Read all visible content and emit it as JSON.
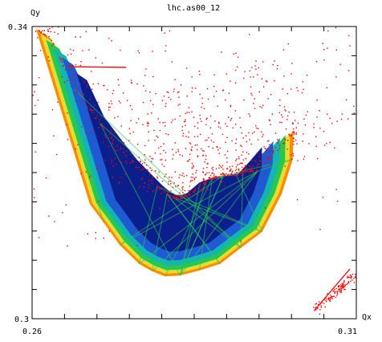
{
  "chart_data": {
    "type": "scatter",
    "title": "lhc.as00_12",
    "xlabel": "Qx",
    "ylabel": "Qy",
    "xlim": [
      0.26,
      0.31
    ],
    "ylim": [
      0.3,
      0.34
    ],
    "x_tick_labels": [
      "0.26",
      "0.31"
    ],
    "y_tick_labels": [
      "0.34",
      "0.3"
    ],
    "x_minor_ticks": [
      0.265,
      0.27,
      0.275,
      0.28,
      0.285,
      0.29,
      0.295,
      0.3,
      0.305
    ],
    "y_minor_ticks": [
      0.304,
      0.308,
      0.312,
      0.316,
      0.32,
      0.324,
      0.328,
      0.332,
      0.336
    ],
    "grid": false,
    "legend": "none",
    "colors": {
      "scatter_red": "#ff0000",
      "core_blue": "#0a1e8c",
      "mid_blue": "#1e5ad2",
      "cyan": "#14b4b4",
      "green": "#28c850",
      "yellow": "#e6dc32",
      "orange": "#ff8c00"
    },
    "series": [
      {
        "role": "footprint-boundary",
        "x": [
          0.2606,
          0.2628,
          0.2665,
          0.2705,
          0.2735,
          0.2765,
          0.2793,
          0.2808,
          0.2818,
          0.2828,
          0.2842,
          0.2858,
          0.2868,
          0.2878,
          0.2895,
          0.2915,
          0.2925,
          0.2948,
          0.2978,
          0.3003,
          0.3002,
          0.2985,
          0.2955,
          0.2922,
          0.289,
          0.2858,
          0.2828,
          0.2805,
          0.2785,
          0.2765,
          0.2735,
          0.271,
          0.2689
        ],
        "y": [
          0.3397,
          0.3384,
          0.3314,
          0.3267,
          0.3233,
          0.3206,
          0.3181,
          0.3171,
          0.3166,
          0.3165,
          0.3169,
          0.3181,
          0.3189,
          0.3193,
          0.3196,
          0.3197,
          0.3202,
          0.3202,
          0.3231,
          0.3257,
          0.3218,
          0.3171,
          0.3119,
          0.3097,
          0.3075,
          0.3066,
          0.3059,
          0.3058,
          0.3065,
          0.3075,
          0.3101,
          0.3132,
          0.3157
        ]
      },
      {
        "role": "resonance-line",
        "x": [
          0.2655,
          0.2745
        ],
        "y": [
          0.3345,
          0.3344
        ]
      },
      {
        "role": "resonance-line",
        "x": [
          0.3035,
          0.309
        ],
        "y": [
          0.3011,
          0.3068
        ]
      }
    ]
  }
}
